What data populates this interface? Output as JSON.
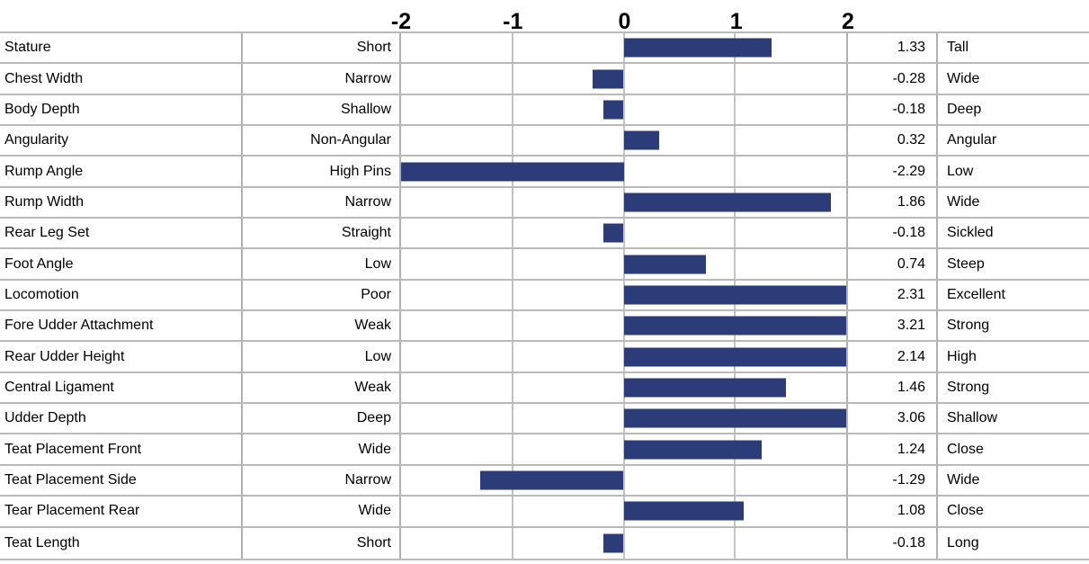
{
  "chart_data": {
    "type": "bar",
    "orientation": "horizontal",
    "title": "",
    "xlabel": "",
    "ylabel": "",
    "xlim": [
      -2,
      2
    ],
    "axis_ticks": [
      "-2",
      "-1",
      "0",
      "1",
      "2"
    ],
    "grid": "on",
    "bars_clipped_to_axis_range": true,
    "categories": [
      "Stature",
      "Chest Width",
      "Body Depth",
      "Angularity",
      "Rump Angle",
      "Rump Width",
      "Rear Leg Set",
      "Foot Angle",
      "Locomotion",
      "Fore Udder Attachment",
      "Rear Udder Height",
      "Central Ligament",
      "Udder Depth",
      "Teat Placement Front",
      "Teat Placement Side",
      "Tear Placement Rear",
      "Teat Length"
    ],
    "values": [
      1.33,
      -0.28,
      -0.18,
      0.32,
      -2.29,
      1.86,
      -0.18,
      0.74,
      2.31,
      3.21,
      2.14,
      1.46,
      3.06,
      1.24,
      -1.29,
      1.08,
      -0.18
    ],
    "bar_color": "#2b3c79",
    "gridline_color": "#c3c3c3",
    "border_color": "#b0b0b0"
  },
  "rows": [
    {
      "trait": "Stature",
      "low": "Short",
      "value": "1.33",
      "high": "Tall"
    },
    {
      "trait": "Chest Width",
      "low": "Narrow",
      "value": "-0.28",
      "high": "Wide"
    },
    {
      "trait": "Body Depth",
      "low": "Shallow",
      "value": "-0.18",
      "high": "Deep"
    },
    {
      "trait": "Angularity",
      "low": "Non-Angular",
      "value": "0.32",
      "high": "Angular"
    },
    {
      "trait": "Rump Angle",
      "low": "High Pins",
      "value": "-2.29",
      "high": "Low"
    },
    {
      "trait": "Rump Width",
      "low": "Narrow",
      "value": "1.86",
      "high": "Wide"
    },
    {
      "trait": "Rear Leg Set",
      "low": "Straight",
      "value": "-0.18",
      "high": "Sickled"
    },
    {
      "trait": "Foot Angle",
      "low": "Low",
      "value": "0.74",
      "high": "Steep"
    },
    {
      "trait": "Locomotion",
      "low": "Poor",
      "value": "2.31",
      "high": "Excellent"
    },
    {
      "trait": "Fore Udder Attachment",
      "low": "Weak",
      "value": "3.21",
      "high": "Strong"
    },
    {
      "trait": "Rear Udder Height",
      "low": "Low",
      "value": "2.14",
      "high": "High"
    },
    {
      "trait": "Central Ligament",
      "low": "Weak",
      "value": "1.46",
      "high": "Strong"
    },
    {
      "trait": "Udder Depth",
      "low": "Deep",
      "value": "3.06",
      "high": "Shallow"
    },
    {
      "trait": "Teat Placement Front",
      "low": "Wide",
      "value": "1.24",
      "high": "Close"
    },
    {
      "trait": "Teat Placement Side",
      "low": "Narrow",
      "value": "-1.29",
      "high": "Wide"
    },
    {
      "trait": "Tear Placement Rear",
      "low": "Wide",
      "value": "1.08",
      "high": "Close"
    },
    {
      "trait": "Teat Length",
      "low": "Short",
      "value": "-0.18",
      "high": "Long"
    }
  ]
}
